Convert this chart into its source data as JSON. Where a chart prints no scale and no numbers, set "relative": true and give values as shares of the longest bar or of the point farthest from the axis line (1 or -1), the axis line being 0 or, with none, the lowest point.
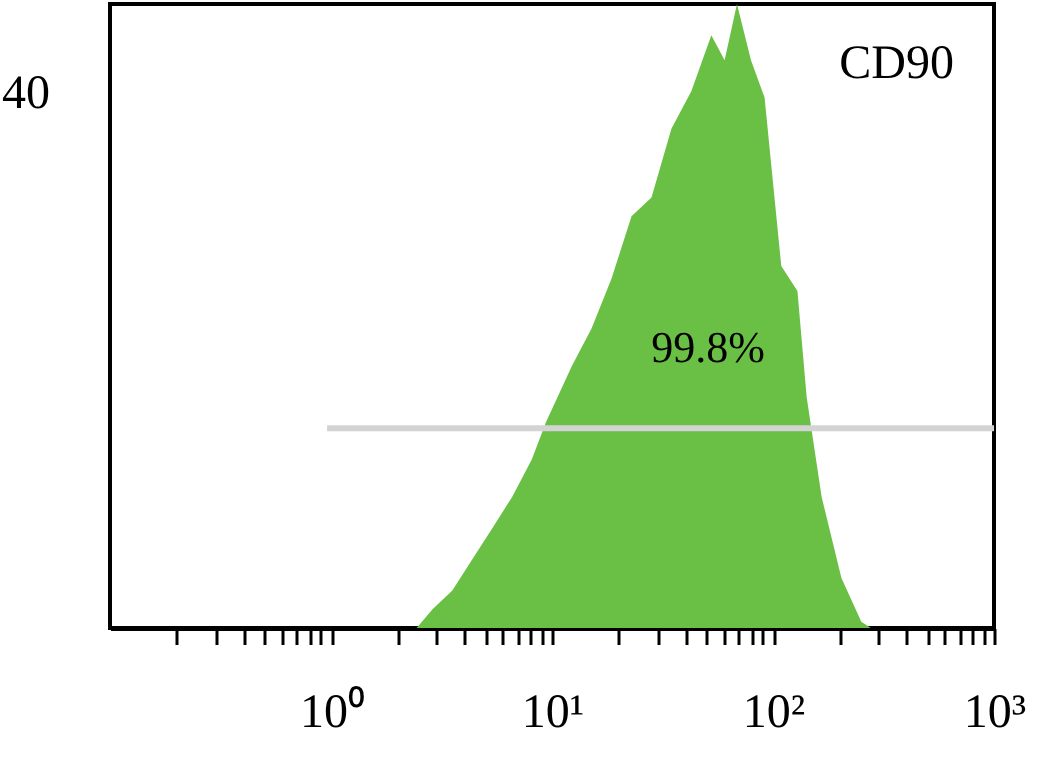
{
  "chart_data": {
    "type": "area",
    "relative": true,
    "log": "x",
    "annotations": [
      "CD90",
      "40",
      "99.8%"
    ],
    "xlim": [
      0.1,
      1000
    ],
    "xticks": [
      {
        "value": 0.2,
        "label": null
      },
      {
        "value": 0.3,
        "label": null
      },
      {
        "value": 0.4,
        "label": null
      },
      {
        "value": 0.5,
        "label": null
      },
      {
        "value": 0.6,
        "label": null
      },
      {
        "value": 0.7,
        "label": null
      },
      {
        "value": 0.8,
        "label": null
      },
      {
        "value": 0.9,
        "label": null
      },
      {
        "value": 1,
        "label": "10⁰"
      },
      {
        "value": 2,
        "label": null
      },
      {
        "value": 3,
        "label": null
      },
      {
        "value": 4,
        "label": null
      },
      {
        "value": 5,
        "label": null
      },
      {
        "value": 6,
        "label": null
      },
      {
        "value": 7,
        "label": null
      },
      {
        "value": 8,
        "label": null
      },
      {
        "value": 9,
        "label": null
      },
      {
        "value": 10,
        "label": "10¹"
      },
      {
        "value": 20,
        "label": null
      },
      {
        "value": 30,
        "label": null
      },
      {
        "value": 40,
        "label": null
      },
      {
        "value": 50,
        "label": null
      },
      {
        "value": 60,
        "label": null
      },
      {
        "value": 70,
        "label": null
      },
      {
        "value": 80,
        "label": null
      },
      {
        "value": 90,
        "label": null
      },
      {
        "value": 100,
        "label": "10²"
      },
      {
        "value": 200,
        "label": null
      },
      {
        "value": 300,
        "label": null
      },
      {
        "value": 400,
        "label": null
      },
      {
        "value": 500,
        "label": null
      },
      {
        "value": 600,
        "label": null
      },
      {
        "value": 700,
        "label": null
      },
      {
        "value": 800,
        "label": null
      },
      {
        "value": 900,
        "label": null
      },
      {
        "value": 1000,
        "label": "10³"
      }
    ],
    "series": [
      {
        "color": "#6abf45",
        "x": [
          2.44,
          2.88,
          3.54,
          4.36,
          5.37,
          6.6,
          8.1,
          9.4,
          12.3,
          15.1,
          18.6,
          22.9,
          28.2,
          34.7,
          42.7,
          52.6,
          60.4,
          68.7,
          79.5,
          91.6,
          109,
          129,
          142,
          166,
          204,
          251,
          277
        ],
        "values": [
          0,
          0.03,
          0.06,
          0.11,
          0.16,
          0.21,
          0.27,
          0.33,
          0.42,
          0.48,
          0.56,
          0.66,
          0.69,
          0.8,
          0.86,
          0.95,
          0.91,
          1,
          0.91,
          0.85,
          0.58,
          0.54,
          0.37,
          0.21,
          0.08,
          0.01,
          0
        ]
      },
      {
        "type": "line",
        "color": "#d3d3d3",
        "x": [
          0.96,
          1000
        ],
        "values": [
          0.32,
          0.32
        ]
      }
    ]
  }
}
